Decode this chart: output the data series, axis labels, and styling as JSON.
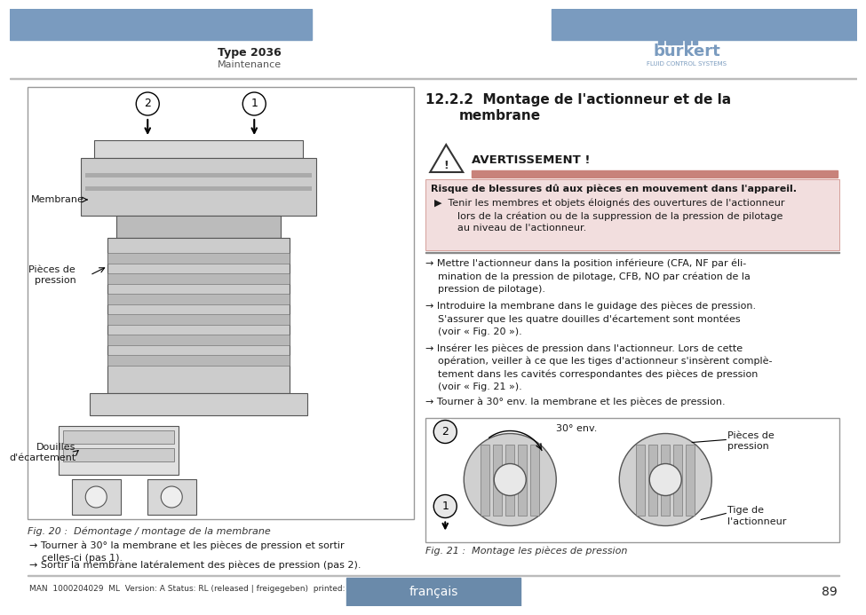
{
  "header_color": "#7a9bbf",
  "title_type": "Type 2036",
  "title_sub": "Maintenance",
  "footer_text": "français",
  "footer_page": "89",
  "footer_note": "MAN  1000204029  ML  Version: A Status: RL (released | freigegeben)  printed: 24.01.2014",
  "warning_title": "AVERTISSEMENT !",
  "warning_bar_color": "#c8827a",
  "warning_box_color": "#f2dede",
  "warning_bold": "Risque de blessures dû aux pièces en mouvement dans l'appareil.",
  "warning_bullet": " Tenir les membres et objets éloignés des ouvertures de l'actionneur\n    lors de la création ou de la suppression de la pression de pilotage\n    au niveau de l'actionneur.",
  "steps": [
    "→ Mettre l'actionneur dans la position inférieure (CFA, NF par éli-\n    mination de la pression de pilotage, CFB, NO par création de la\n    pression de pilotage).",
    "→ Introduire la membrane dans le guidage des pièces de pression.\n    S'assurer que les quatre douilles d'écartement sont montées\n    (voir « Fig. 20 »).",
    "→ Insérer les pièces de pression dans l'actionneur. Lors de cette\n    opération, veiller à ce que les tiges d'actionneur s'insèrent complè-\n    tement dans les cavités correspondantes des pièces de pression\n    (voir « Fig. 21 »).",
    "→ Tourner à 30° env. la membrane et les pièces de pression."
  ],
  "left_steps": [
    "→ Tourner à 30° la membrane et les pièces de pression et sortir\n    celles-ci (pas 1).",
    "→ Sortir la membrane latéralement des pièces de pression (pas 2)."
  ],
  "fig20_caption": "Fig. 20 :  Démontage / montage de la membrane",
  "fig21_caption": "Fig. 21 :  Montage les pièces de pression",
  "label_membrane": "Membrane",
  "label_pieces": "Pièces de\npression",
  "label_douilles": "Douilles\nd'écartement",
  "label_30deg": "30° env.",
  "label_pieces2": "Pièces de\npression",
  "label_tige": "Tige de\nl'actionneur",
  "bg_color": "#ffffff",
  "text_color": "#1a1a1a",
  "fig_border_color": "#999999"
}
